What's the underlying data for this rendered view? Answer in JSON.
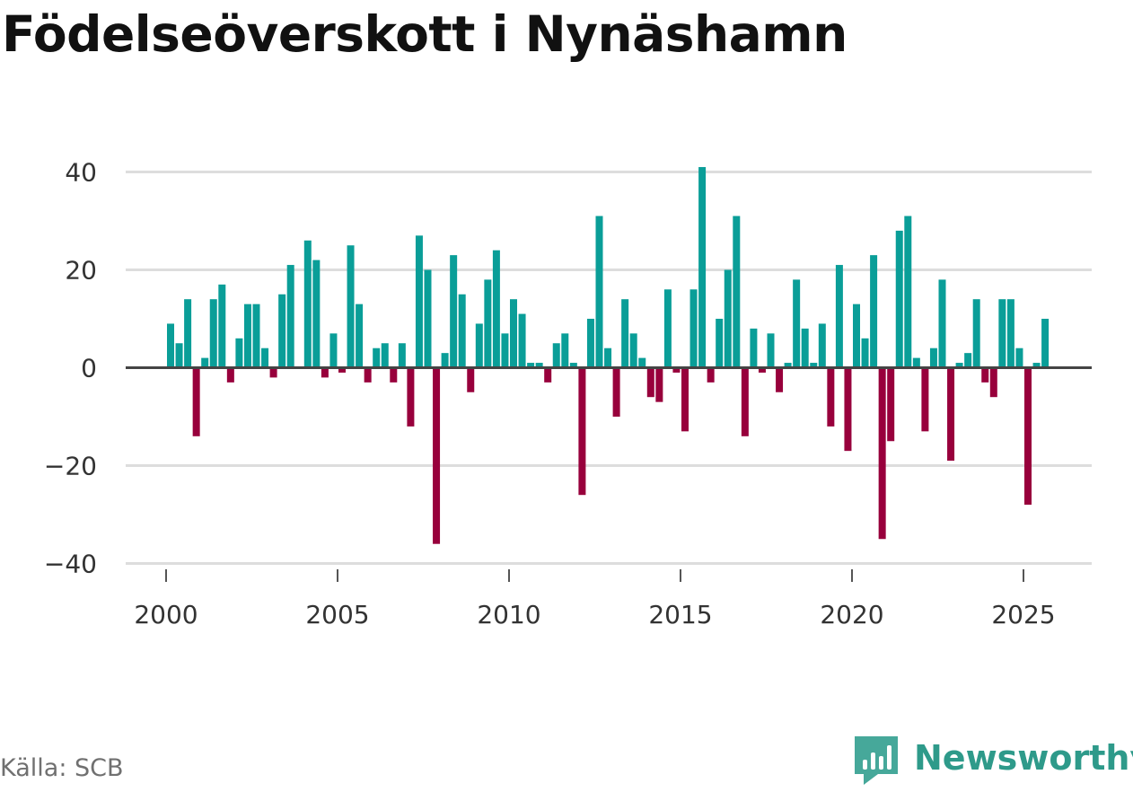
{
  "title": "Födelseöverskott i Nynäshamn",
  "source": "Källa: SCB",
  "brand": {
    "name": "Newsworthy",
    "icon": "newsworthy-logo-icon"
  },
  "colors": {
    "positive": "#0a9e98",
    "negative": "#98003c",
    "grid": "#dddddd",
    "zero": "#444444",
    "text": "#333333",
    "brand": "#2e9a8a"
  },
  "chart_data": {
    "type": "bar",
    "title": "Födelseöverskott i Nynäshamn",
    "xlabel": "",
    "ylabel": "",
    "ylim": [
      -40,
      45
    ],
    "yticks": [
      40,
      20,
      0,
      -20,
      -40
    ],
    "ytick_labels": [
      "40",
      "20",
      "0",
      "−20",
      "−40"
    ],
    "xlim": [
      1999.25,
      2026.75
    ],
    "xticks": [
      2000,
      2005,
      2010,
      2015,
      2020,
      2025
    ],
    "xtick_labels": [
      "2000",
      "2005",
      "2010",
      "2015",
      "2020",
      "2025"
    ],
    "frequency": "monthly",
    "x_start": 2000.0,
    "x_step": 0.25,
    "values": [
      9,
      5,
      14,
      -14,
      2,
      14,
      17,
      -3,
      6,
      13,
      13,
      4,
      -2,
      15,
      21,
      0,
      26,
      22,
      -2,
      7,
      -1,
      25,
      13,
      -3,
      4,
      5,
      -3,
      5,
      -12,
      27,
      20,
      -36,
      3,
      23,
      15,
      -5,
      9,
      18,
      24,
      7,
      14,
      11,
      1,
      1,
      -3,
      5,
      7,
      1,
      -26,
      10,
      31,
      4,
      -10,
      14,
      7,
      2,
      -6,
      -7,
      16,
      -1,
      -13,
      16,
      41,
      -3,
      10,
      20,
      31,
      -14,
      8,
      -1,
      7,
      -5,
      1,
      18,
      8,
      1,
      9,
      -12,
      21,
      -17,
      13,
      6,
      23,
      -35,
      -15,
      28,
      31,
      2,
      -13,
      4,
      18,
      -19,
      1,
      3,
      14,
      -3,
      -6,
      14,
      14,
      4,
      -28,
      1,
      10
    ]
  }
}
